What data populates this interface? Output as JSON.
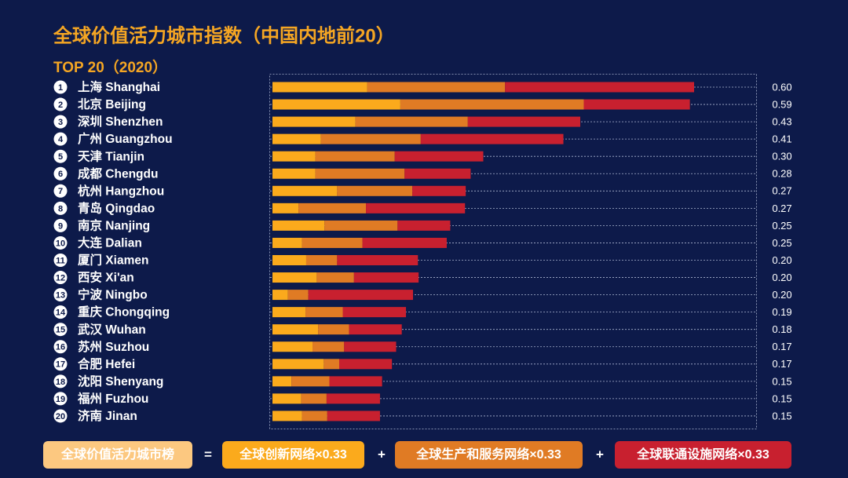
{
  "chart_data": {
    "type": "stacked-bar",
    "title": "全球价值活力城市指数（中国内地前20）",
    "subtitle": "TOP 20（2020）",
    "ranks": [
      1,
      2,
      3,
      4,
      5,
      6,
      7,
      8,
      9,
      10,
      11,
      12,
      13,
      14,
      15,
      16,
      17,
      18,
      19,
      20
    ],
    "categories": [
      "上海 Shanghai",
      "北京 Beijing",
      "深圳 Shenzhen",
      "广州 Guangzhou",
      "天津 Tianjin",
      "成都 Chengdu",
      "杭州 Hangzhou",
      "青岛 Qingdao",
      "南京 Nanjing",
      "大连 Dalian",
      "厦门 Xiamen",
      "西安 Xi'an",
      "宁波 Ningbo",
      "重庆 Chongqing",
      "武汉 Wuhan",
      "苏州 Suzhou",
      "合肥 Hefei",
      "沈阳 Shenyang",
      "福州 Fuzhou",
      "济南 Jinan"
    ],
    "series": [
      {
        "name": "全球创新网络×0.33",
        "color": "#fbaa1c",
        "values": [
          0.135,
          0.182,
          0.118,
          0.069,
          0.061,
          0.061,
          0.092,
          0.037,
          0.074,
          0.042,
          0.048,
          0.063,
          0.022,
          0.047,
          0.065,
          0.057,
          0.073,
          0.027,
          0.041,
          0.042
        ]
      },
      {
        "name": "全球生产和服务网络×0.33",
        "color": "#e07b24",
        "values": [
          0.196,
          0.261,
          0.16,
          0.142,
          0.113,
          0.127,
          0.107,
          0.096,
          0.104,
          0.086,
          0.044,
          0.053,
          0.029,
          0.053,
          0.044,
          0.045,
          0.022,
          0.054,
          0.036,
          0.036
        ]
      },
      {
        "name": "全球联通设施网络×0.33",
        "color": "#c8202f",
        "values": [
          0.269,
          0.151,
          0.16,
          0.203,
          0.126,
          0.094,
          0.076,
          0.141,
          0.075,
          0.12,
          0.115,
          0.092,
          0.149,
          0.09,
          0.075,
          0.074,
          0.075,
          0.075,
          0.076,
          0.075
        ]
      }
    ],
    "total_labels": [
      "0.60",
      "0.59",
      "0.43",
      "0.41",
      "0.30",
      "0.28",
      "0.27",
      "0.27",
      "0.25",
      "0.25",
      "0.20",
      "0.20",
      "0.20",
      "0.19",
      "0.18",
      "0.17",
      "0.17",
      "0.15",
      "0.15",
      "0.15"
    ],
    "formula_result": "全球价值活力城市榜",
    "formula_ops": [
      "=",
      "+",
      "+"
    ]
  }
}
